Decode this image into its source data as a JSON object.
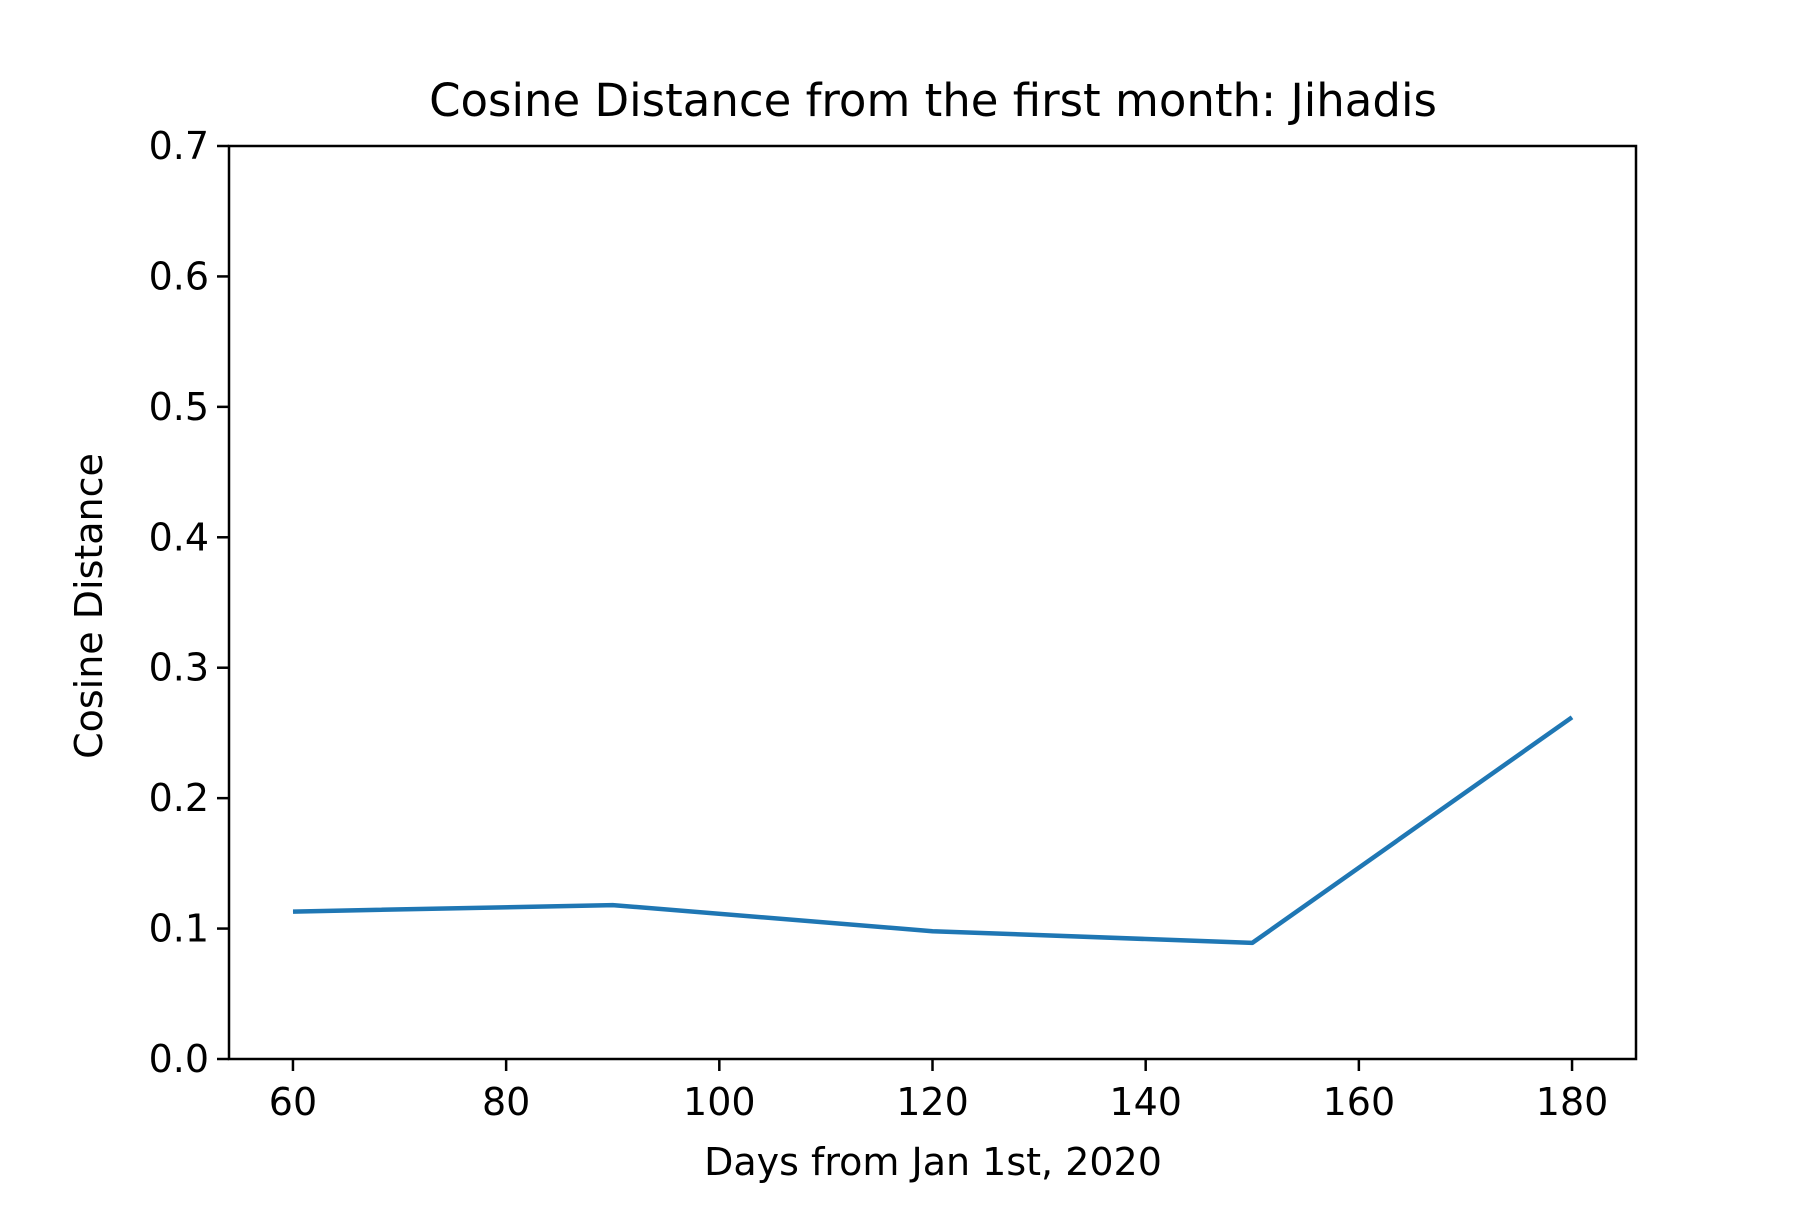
{
  "chart_data": {
    "type": "line",
    "title": "Cosine Distance from the first month: Jihadis",
    "xlabel": "Days from Jan 1st, 2020",
    "ylabel": "Cosine Distance",
    "xlim": [
      54,
      186
    ],
    "ylim": [
      0,
      0.7
    ],
    "x_ticks": [
      60,
      80,
      100,
      120,
      140,
      160,
      180
    ],
    "x_tick_labels": [
      "60",
      "80",
      "100",
      "120",
      "140",
      "160",
      "180"
    ],
    "y_ticks": [
      0.0,
      0.1,
      0.2,
      0.3,
      0.4,
      0.5,
      0.6,
      0.7
    ],
    "y_tick_labels": [
      "0.0",
      "0.1",
      "0.2",
      "0.3",
      "0.4",
      "0.5",
      "0.6",
      "0.7"
    ],
    "grid": false,
    "series": [
      {
        "color": "#1f77b4",
        "x": [
          60,
          90,
          120,
          150,
          180
        ],
        "y": [
          0.113,
          0.118,
          0.098,
          0.089,
          0.262
        ]
      }
    ]
  }
}
